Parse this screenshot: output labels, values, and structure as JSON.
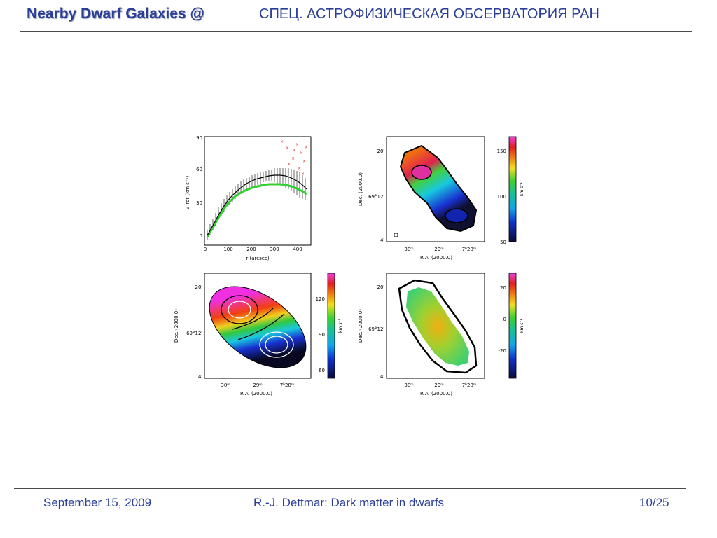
{
  "header": {
    "title": "Nearby Dwarf Galaxies @",
    "subtitle": "СПЕЦ. АСТРОФИЗИЧЕСКАЯ ОБСЕРВАТОРИЯ РАН"
  },
  "footer": {
    "date": "September 15, 2009",
    "author": "R.-J. Dettmar: Dark matter in dwarfs",
    "page": "10/25"
  },
  "figure": {
    "panel_a": {
      "xlabel": "r (arcsec)",
      "ylabel": "v_rot (km s⁻¹)",
      "xticks": [
        "0",
        "100",
        "200",
        "300",
        "400"
      ],
      "yticks": [
        "0",
        "30",
        "60",
        "90"
      ]
    },
    "map_axes": {
      "xlabel": "R.A. (2000.0)",
      "ylabel": "Dec. (2000.0)",
      "xticks": [
        "30ᵐ",
        "29ᵐ",
        "7ʰ28ᵐ"
      ],
      "yticks": [
        "20′",
        "69°12′",
        "4′"
      ],
      "colorbar_label": "km s⁻¹"
    },
    "panel_b": {
      "colorbar_ticks": [
        "150",
        "100",
        "50"
      ],
      "beam_marker": "⊞"
    },
    "panel_c": {
      "colorbar_ticks": [
        "120",
        "90",
        "60"
      ]
    },
    "panel_d": {
      "colorbar_ticks": [
        "20",
        "0",
        "-20"
      ]
    }
  }
}
